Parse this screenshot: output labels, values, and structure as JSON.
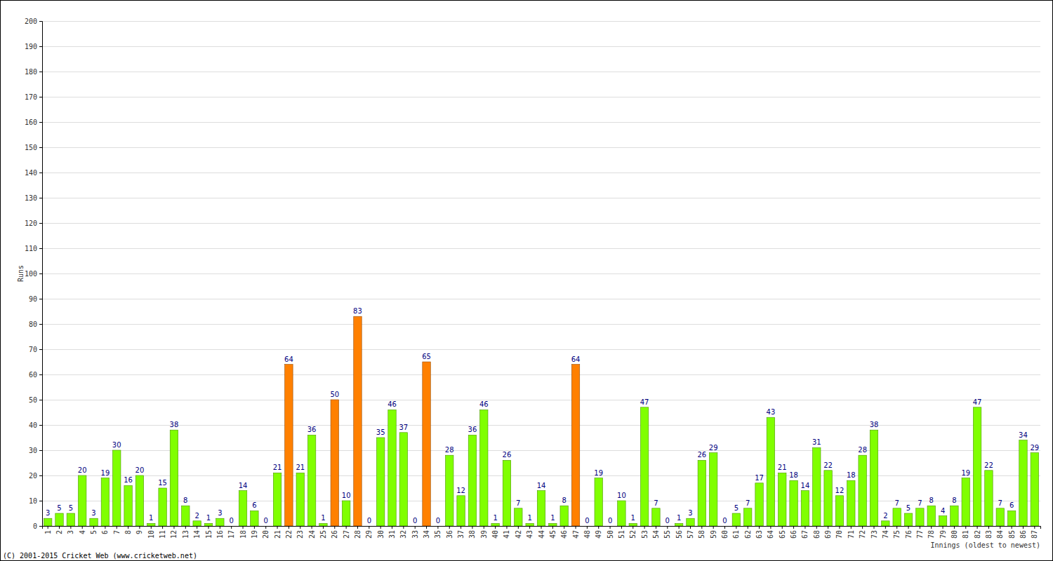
{
  "chart_data": {
    "type": "bar",
    "x_label": "Innings (oldest to newest)",
    "y_label": "Runs",
    "annotations": [
      "(C) 2001-2015 Cricket Web (www.cricketweb.net)"
    ],
    "categories": [
      "1",
      "2",
      "3",
      "4",
      "5",
      "6",
      "7",
      "8",
      "9",
      "10",
      "11",
      "12",
      "13",
      "14",
      "15",
      "16",
      "17",
      "18",
      "19",
      "20",
      "21",
      "22",
      "23",
      "24",
      "25",
      "26",
      "27",
      "28",
      "29",
      "30",
      "31",
      "32",
      "33",
      "34",
      "35",
      "36",
      "37",
      "38",
      "39",
      "40",
      "41",
      "42",
      "43",
      "44",
      "45",
      "46",
      "47",
      "48",
      "49",
      "50",
      "51",
      "52",
      "53",
      "54",
      "55",
      "56",
      "57",
      "58",
      "59",
      "60",
      "61",
      "62",
      "63",
      "64",
      "65",
      "66",
      "67",
      "68",
      "69",
      "70",
      "71",
      "72",
      "73",
      "74",
      "75",
      "76",
      "77",
      "78",
      "79",
      "80",
      "81",
      "82",
      "83",
      "84",
      "85",
      "86",
      "87"
    ],
    "values": [
      3,
      5,
      5,
      20,
      3,
      19,
      30,
      16,
      20,
      1,
      15,
      38,
      8,
      2,
      1,
      3,
      0,
      14,
      6,
      0,
      21,
      64,
      21,
      36,
      1,
      50,
      10,
      83,
      0,
      35,
      46,
      37,
      0,
      65,
      0,
      28,
      12,
      36,
      46,
      1,
      26,
      7,
      1,
      14,
      1,
      8,
      64,
      0,
      19,
      0,
      10,
      1,
      47,
      7,
      0,
      1,
      3,
      26,
      29,
      0,
      5,
      7,
      17,
      43,
      21,
      18,
      14,
      31,
      22,
      12,
      18,
      28,
      38,
      2,
      7,
      5,
      7,
      8,
      4,
      8,
      19,
      47,
      22,
      7,
      6,
      34,
      29
    ],
    "colors": [
      "#80ff00",
      "#80ff00",
      "#80ff00",
      "#80ff00",
      "#80ff00",
      "#80ff00",
      "#80ff00",
      "#80ff00",
      "#80ff00",
      "#80ff00",
      "#80ff00",
      "#80ff00",
      "#80ff00",
      "#80ff00",
      "#80ff00",
      "#80ff00",
      "#80ff00",
      "#80ff00",
      "#80ff00",
      "#80ff00",
      "#80ff00",
      "#ff8000",
      "#80ff00",
      "#80ff00",
      "#80ff00",
      "#ff8000",
      "#80ff00",
      "#ff8000",
      "#80ff00",
      "#80ff00",
      "#80ff00",
      "#80ff00",
      "#80ff00",
      "#ff8000",
      "#80ff00",
      "#80ff00",
      "#80ff00",
      "#80ff00",
      "#80ff00",
      "#80ff00",
      "#80ff00",
      "#80ff00",
      "#80ff00",
      "#80ff00",
      "#80ff00",
      "#80ff00",
      "#ff8000",
      "#80ff00",
      "#80ff00",
      "#80ff00",
      "#80ff00",
      "#80ff00",
      "#80ff00",
      "#80ff00",
      "#80ff00",
      "#80ff00",
      "#80ff00",
      "#80ff00",
      "#80ff00",
      "#80ff00",
      "#80ff00",
      "#80ff00",
      "#80ff00",
      "#80ff00",
      "#80ff00",
      "#80ff00",
      "#80ff00",
      "#80ff00",
      "#80ff00",
      "#80ff00",
      "#80ff00",
      "#80ff00",
      "#80ff00",
      "#80ff00",
      "#80ff00",
      "#80ff00",
      "#80ff00",
      "#80ff00",
      "#80ff00",
      "#80ff00",
      "#80ff00",
      "#80ff00",
      "#80ff00",
      "#80ff00",
      "#80ff00",
      "#80ff00",
      "#80ff00"
    ],
    "ylim": [
      0,
      200
    ],
    "yticks": [
      0,
      10,
      20,
      30,
      40,
      50,
      60,
      70,
      80,
      90,
      100,
      110,
      120,
      130,
      140,
      150,
      160,
      170,
      180,
      190,
      200
    ],
    "grid": true,
    "data_labels": true
  }
}
